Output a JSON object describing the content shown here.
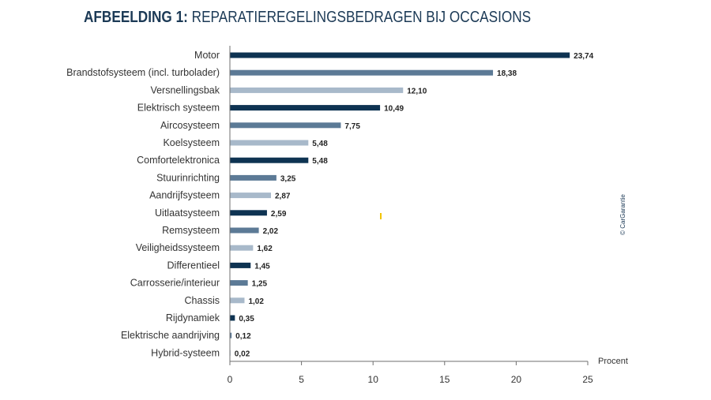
{
  "title": {
    "bold": "AFBEELDING 1:",
    "light": "REPARATIEREGELINGSBEDRAGEN BIJ OCCASIONS"
  },
  "credit": "© CarGarantie",
  "colors": {
    "dark": "#0e3352",
    "mid": "#5c7a96",
    "light": "#a8b9ca",
    "title": "#1c3a56"
  },
  "chart_data": {
    "type": "bar",
    "orientation": "horizontal",
    "categories": [
      "Motor",
      "Brandstofsysteem (incl. turbolader)",
      "Versnellingsbak",
      "Elektrisch systeem",
      "Aircosysteem",
      "Koelsysteem",
      "Comfortelektronica",
      "Stuurinrichting",
      "Aandrijfsysteem",
      "Uitlaatsysteem",
      "Remsysteem",
      "Veiligheidssysteem",
      "Differentieel",
      "Carrosserie/interieur",
      "Chassis",
      "Rijdynamiek",
      "Elektrische aandrijving",
      "Hybrid-systeem"
    ],
    "values": [
      23.74,
      18.38,
      12.1,
      10.49,
      7.75,
      5.48,
      5.48,
      3.25,
      2.87,
      2.59,
      2.02,
      1.62,
      1.45,
      1.25,
      1.02,
      0.35,
      0.12,
      0.02
    ],
    "value_labels": [
      "23,74",
      "18,38",
      "12,10",
      "10,49",
      "7,75",
      "5,48",
      "5,48",
      "3,25",
      "2,87",
      "2,59",
      "2,02",
      "1,62",
      "1,45",
      "1,25",
      "1,02",
      "0,35",
      "0,12",
      "0,02"
    ],
    "bar_colors": [
      "dark",
      "mid",
      "light",
      "dark",
      "mid",
      "light",
      "dark",
      "mid",
      "light",
      "dark",
      "mid",
      "light",
      "dark",
      "mid",
      "light",
      "dark",
      "mid",
      "light"
    ],
    "xlabel": "Procent",
    "xlim": [
      0,
      25
    ],
    "xticks": [
      0,
      5,
      10,
      15,
      20,
      25
    ],
    "xtick_labels": [
      "0",
      "5",
      "10",
      "15",
      "20",
      "25"
    ],
    "grid": false,
    "legend": false
  }
}
